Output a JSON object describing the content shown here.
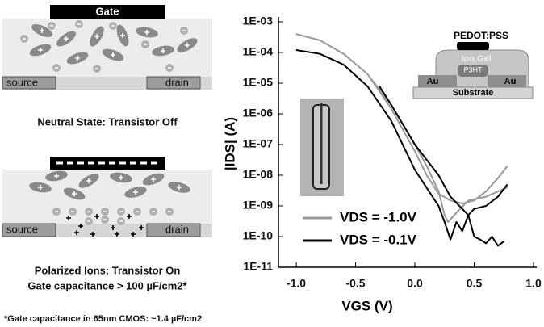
{
  "diagrams": {
    "top": {
      "gate": "Gate",
      "source": "source",
      "drain": "drain",
      "caption": "Neutral State: Transistor Off"
    },
    "bottom": {
      "source": "source",
      "drain": "drain",
      "caption": [
        "Polarized Ions: Transistor On",
        "Gate capacitance > 100 µF/cm2*"
      ]
    },
    "footnote": "*Gate capacitance in 65nm CMOS: ~1.4 µF/cm2"
  },
  "device_inset": {
    "top": "PEDOT:PSS",
    "gel": "Ion Gel",
    "semi": "P3HT",
    "left": "Au",
    "right": "Au",
    "base": "Substrate"
  },
  "chart_data": {
    "type": "line",
    "x_label": "VGS (V)",
    "y_label": "|IDS| (A)",
    "log_y": true,
    "legend": "lower left",
    "xlim": [
      -1.15,
      1.0
    ],
    "ylim": [
      1e-11,
      0.001
    ],
    "xticks": [
      {
        "value": -1,
        "label": "-1.0"
      },
      -0.5,
      {
        "value": 0,
        "label": "0.0"
      },
      0.5,
      {
        "value": 1,
        "label": "1.0"
      }
    ],
    "yticks": [
      {
        "value": 1e-11,
        "label": "1E-11"
      },
      {
        "value": 1e-10,
        "label": "1E-10"
      },
      {
        "value": 1e-09,
        "label": "1E-09"
      },
      {
        "value": 1e-08,
        "label": "1E-08"
      },
      {
        "value": 1e-07,
        "label": "1E-07"
      },
      {
        "value": 1e-06,
        "label": "1E-06"
      },
      {
        "value": 1e-05,
        "label": "1E-05"
      },
      {
        "value": 0.0001,
        "label": "1E-04"
      },
      {
        "value": 0.001,
        "label": "1E-03"
      }
    ],
    "series": [
      {
        "name": "VDS = -1.0V",
        "color": "#9a9a9a",
        "x": [
          -1.0,
          -0.8,
          -0.6,
          -0.4,
          -0.2,
          0.0,
          0.1,
          0.2,
          0.3,
          0.4,
          0.5,
          0.6,
          0.7,
          0.78,
          null,
          0.78,
          0.6,
          0.45,
          0.35,
          0.28,
          0.25,
          0.2,
          0.1,
          0.0,
          -0.2,
          -0.4
        ],
        "values": [
          0.0004,
          0.00025,
          9e-05,
          2e-05,
          1.5e-06,
          6e-08,
          1e-08,
          2.5e-09,
          1.5e-09,
          1.2e-09,
          1.5e-09,
          3e-09,
          8e-09,
          2e-08,
          null,
          4e-09,
          2e-09,
          1.5e-09,
          6e-10,
          3e-10,
          5e-10,
          3e-09,
          2e-08,
          1e-07,
          2e-06,
          2e-05
        ]
      },
      {
        "name": "VDS = -0.1V",
        "color": "#000000",
        "x": [
          -1.0,
          -0.8,
          -0.6,
          -0.4,
          -0.2,
          0.0,
          0.2,
          0.25,
          0.3,
          0.35,
          0.4,
          0.45,
          0.5,
          0.55,
          0.6,
          0.65,
          0.7,
          0.75,
          null,
          0.78,
          0.7,
          0.6,
          0.5,
          0.45,
          0.4,
          0.3,
          0.2,
          0.0,
          -0.2,
          -0.3
        ],
        "values": [
          0.00012,
          9e-05,
          4e-05,
          8e-06,
          6e-07,
          1.5e-08,
          1e-09,
          3e-10,
          8e-11,
          3e-10,
          1.5e-10,
          5e-10,
          1e-10,
          8e-11,
          6e-11,
          1e-10,
          5e-11,
          7e-11,
          null,
          5e-09,
          2e-09,
          1e-09,
          8e-10,
          5e-10,
          8e-10,
          2e-09,
          1e-08,
          1e-07,
          2e-06,
          8e-06
        ]
      }
    ]
  }
}
